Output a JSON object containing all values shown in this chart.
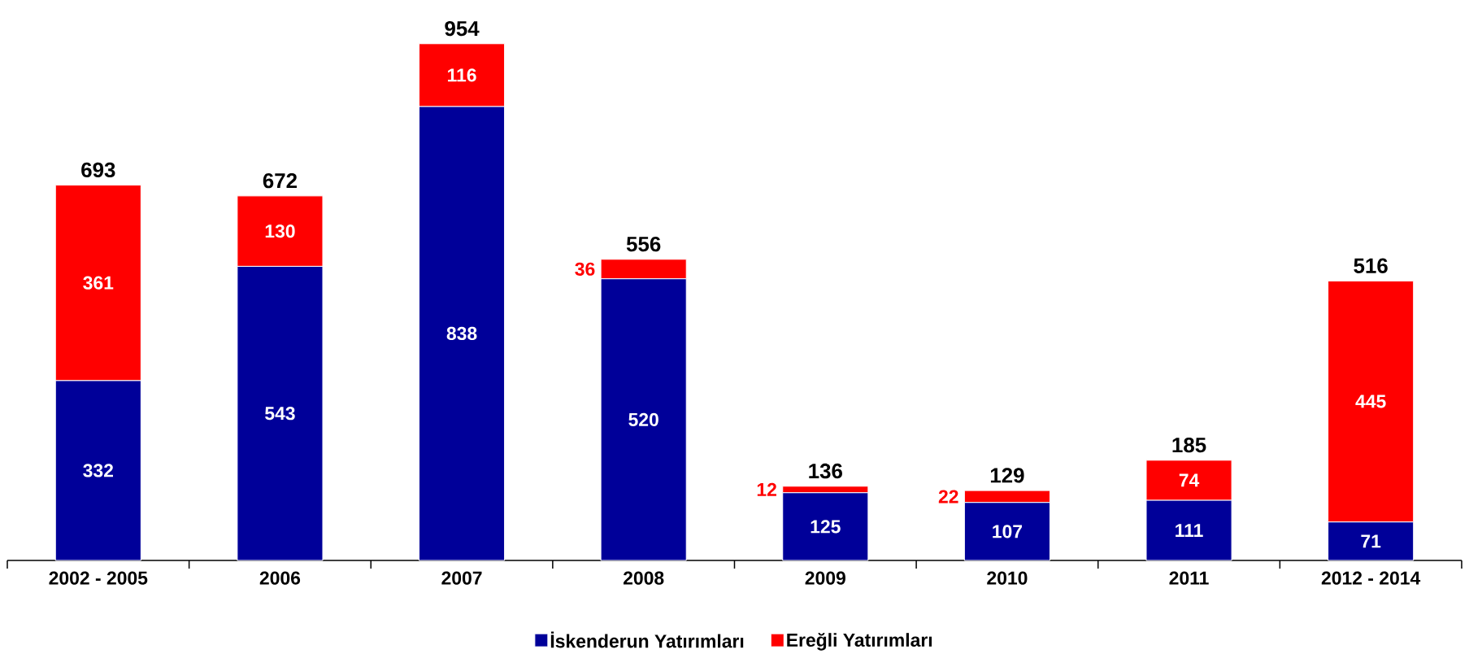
{
  "chart_data": {
    "type": "bar",
    "stacked": true,
    "data_labels": true,
    "legend": "bottom",
    "categories": [
      "2002 - 2005",
      "2006",
      "2007",
      "2008",
      "2009",
      "2010",
      "2011",
      "2012 - 2014"
    ],
    "series": [
      {
        "name": "İskenderun Yatırımları",
        "color": "#000099",
        "values": [
          332,
          543,
          838,
          520,
          125,
          107,
          111,
          71
        ]
      },
      {
        "name": "Ereğli Yatırımları",
        "color": "#ff0000",
        "values": [
          361,
          130,
          116,
          36,
          12,
          22,
          74,
          445
        ]
      }
    ],
    "totals": [
      "693",
      "672",
      "954",
      "556",
      "136",
      "129",
      "185",
      "516"
    ]
  }
}
